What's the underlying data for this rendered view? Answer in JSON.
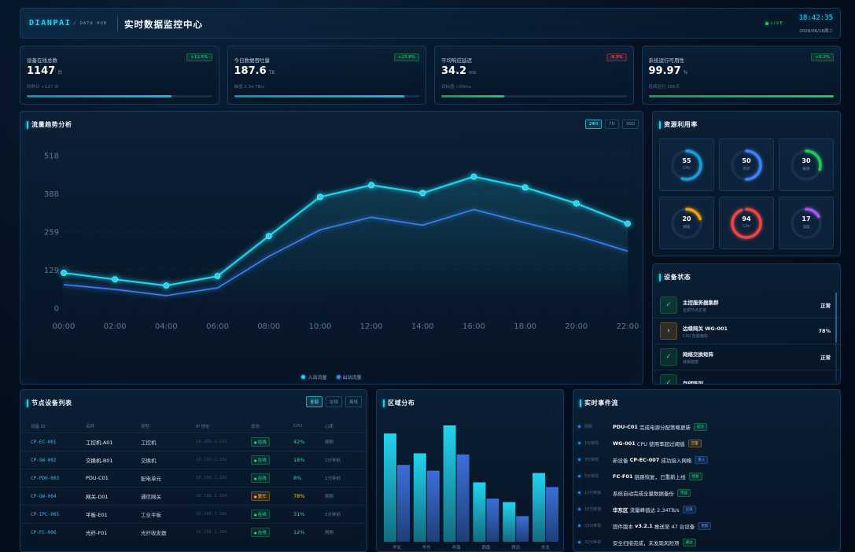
{
  "header": {
    "brand": "DIANPAI",
    "brand_sub": "/ DATA HUB",
    "title": "实时数据监控中心",
    "live_label": "LIVE",
    "time": "18:42:35",
    "date": "2026/06/16周二"
  },
  "kpis": [
    {
      "label": "设备在线总数",
      "badge": "+12.5%",
      "badge_tone": "up",
      "value": "1147",
      "unit": "台",
      "sub": "较昨日 +127 台",
      "progress": 0.78,
      "color": "#1cb5e0"
    },
    {
      "label": "今日数据吞吐量",
      "badge": "+23.8%",
      "badge_tone": "up",
      "value": "187.6",
      "unit": "TB",
      "sub": "峰值 2.34 TB/s",
      "progress": 0.92,
      "color": "#1cb5e0"
    },
    {
      "label": "平均响应延迟",
      "badge": "-4.3%",
      "badge_tone": "down",
      "value": "34.2",
      "unit": "ms",
      "sub": "目标值 <50ms",
      "progress": 0.34,
      "color": "#22c55e"
    },
    {
      "label": "系统运行可用性",
      "badge": "+0.2%",
      "badge_tone": "up",
      "value": "99.97",
      "unit": "%",
      "sub": "连续运行 186天",
      "progress": 1.0,
      "color": "#22c55e"
    }
  ],
  "trend_panel": {
    "tabs": [
      "24H",
      "7D",
      "30D"
    ],
    "active_tab": "24H"
  },
  "resources": {
    "title": "资源利用率",
    "gauges": [
      {
        "value": 55,
        "label": "CPU",
        "color": "#1e9bd7"
      },
      {
        "value": 50,
        "label": "内存",
        "color": "#3b82f6"
      },
      {
        "value": 30,
        "label": "磁盘",
        "color": "#22c55e"
      },
      {
        "value": 20,
        "label": "网络",
        "color": "#f59e0b"
      },
      {
        "value": 94,
        "label": "GPU",
        "color": "#ef4444"
      },
      {
        "value": 17,
        "label": "温度",
        "color": "#a855f7"
      }
    ]
  },
  "device_status": {
    "title": "设备状态",
    "items": [
      {
        "name": "主控服务器集群",
        "detail": "全部节点正常",
        "status": "正常",
        "icon": "check-icon",
        "tone": "ok"
      },
      {
        "name": "边缘网关 WG-001",
        "detail": "CPU 负载偏高",
        "status": "78%",
        "icon": "chevron-right-icon",
        "tone": "warn"
      },
      {
        "name": "网络交换矩阵",
        "detail": "链路健康",
        "status": "正常",
        "icon": "check-icon",
        "tone": "ok"
      },
      {
        "name": "存储阵列",
        "detail": "",
        "status": "",
        "icon": "check-icon",
        "tone": "ok"
      }
    ]
  },
  "device_table": {
    "title": "节点设备列表",
    "filters": [
      "全部",
      "在线",
      "离线"
    ],
    "active_filter": "全部",
    "columns": [
      "设备 ID",
      "名称",
      "类型",
      "IP 地址",
      "状态",
      "CPU",
      "心跳"
    ],
    "rows": [
      {
        "id": "CP-EC-001",
        "name": "工控机-A01",
        "type": "工控机",
        "ip": "10.168.1.101",
        "status": "在线",
        "tone": "ok",
        "cpu": "42%",
        "heartbeat": "刚刚"
      },
      {
        "id": "CP-SW-002",
        "name": "交换机-B01",
        "type": "交换机",
        "ip": "10.168.1.102",
        "status": "在线",
        "tone": "ok",
        "cpu": "18%",
        "heartbeat": "1分钟前"
      },
      {
        "id": "CP-PDU-003",
        "name": "PDU-C01",
        "type": "配电单元",
        "ip": "10.168.1.103",
        "status": "在线",
        "tone": "ok",
        "cpu": "8%",
        "heartbeat": "1分钟前"
      },
      {
        "id": "CP-GW-004",
        "name": "网关-D01",
        "type": "通信网关",
        "ip": "10.168.1.104",
        "status": "繁忙",
        "tone": "warn",
        "cpu": "78%",
        "heartbeat": "刚刚"
      },
      {
        "id": "CP-IPC-005",
        "name": "平板-E01",
        "type": "工业平板",
        "ip": "10.168.1.105",
        "status": "在线",
        "tone": "ok",
        "cpu": "31%",
        "heartbeat": "5分钟前"
      },
      {
        "id": "CP-FC-006",
        "name": "光纤-F01",
        "type": "光纤收发器",
        "ip": "10.168.1.106",
        "status": "在线",
        "tone": "ok",
        "cpu": "12%",
        "heartbeat": "刚刚"
      }
    ]
  },
  "events": {
    "title": "实时事件流",
    "items": [
      {
        "time": "刚刚",
        "parts": [
          {
            "text": "PDU-C01",
            "bold": true
          },
          {
            "text": " 完成电源分配策略更新",
            "bold": false
          }
        ],
        "badge": "成功",
        "tone": "success"
      },
      {
        "time": "1分钟前",
        "parts": [
          {
            "text": "WG-001",
            "bold": true
          },
          {
            "text": " CPU 使用率超过阈值",
            "bold": false
          }
        ],
        "badge": "告警",
        "tone": "warn"
      },
      {
        "time": "3分钟前",
        "parts": [
          {
            "text": "新设备 ",
            "bold": false
          },
          {
            "text": "CP-EC-007",
            "bold": true
          },
          {
            "text": " 成功接入网络",
            "bold": false
          }
        ],
        "badge": "接入",
        "tone": "info"
      },
      {
        "time": "5分钟前",
        "parts": [
          {
            "text": "FC-F01",
            "bold": true
          },
          {
            "text": " 链路恢复，已重新上线",
            "bold": false
          }
        ],
        "badge": "恢复",
        "tone": "success"
      },
      {
        "time": "12分钟前",
        "parts": [
          {
            "text": "系统自动完成全量数据备份",
            "bold": false
          }
        ],
        "badge": "完成",
        "tone": "success"
      },
      {
        "time": "15分钟前",
        "parts": [
          {
            "text": "华东区",
            "bold": true
          },
          {
            "text": " 流量峰值达 2.34TB/s",
            "bold": false
          }
        ],
        "badge": "记录",
        "tone": "info"
      },
      {
        "time": "23分钟前",
        "parts": [
          {
            "text": "固件版本 ",
            "bold": false
          },
          {
            "text": "v3.2.1",
            "bold": true
          },
          {
            "text": " 推送至 47 台设备",
            "bold": false
          }
        ],
        "badge": "更新",
        "tone": "info"
      },
      {
        "time": "32分钟前",
        "parts": [
          {
            "text": "安全扫描完成，未发现风险项",
            "bold": false
          }
        ],
        "badge": "通过",
        "tone": "success"
      }
    ]
  },
  "chart_data": [
    {
      "type": "line",
      "title": "流量趋势分析",
      "x": [
        "00:00",
        "02:00",
        "04:00",
        "06:00",
        "08:00",
        "10:00",
        "12:00",
        "14:00",
        "16:00",
        "18:00",
        "20:00",
        "22:00"
      ],
      "y_ticks": [
        "518",
        "388",
        "259",
        "129",
        "0"
      ],
      "ylim": [
        0,
        518
      ],
      "grid": true,
      "legend_position": "bottom-center",
      "series": [
        {
          "name": "入站流量",
          "color": "#22d3ee",
          "markers": true,
          "values": [
            120,
            98,
            77,
            109,
            245,
            378,
            418,
            391,
            447,
            410,
            356,
            287
          ]
        },
        {
          "name": "出站流量",
          "color": "#3b82f6",
          "markers": false,
          "values": [
            80,
            64,
            43,
            69,
            176,
            266,
            309,
            282,
            335,
            290,
            247,
            194
          ]
        }
      ]
    },
    {
      "type": "bar",
      "title": "区域分布",
      "categories": [
        "华北",
        "华东",
        "华南",
        "西南",
        "西北",
        "东北"
      ],
      "ylim": [
        0,
        100
      ],
      "grid": false,
      "series": [
        {
          "color": "#22d3ee",
          "values": [
            93,
            76,
            100,
            51,
            34,
            59
          ]
        },
        {
          "color": "#3b6fd8",
          "values": [
            66,
            61,
            75,
            37,
            22,
            47
          ]
        }
      ]
    }
  ]
}
